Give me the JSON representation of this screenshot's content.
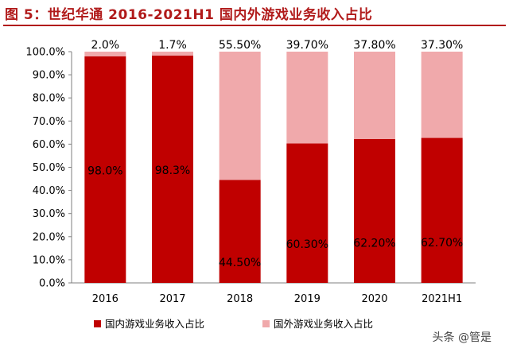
{
  "title": "图 5：世纪华通 2016-2021H1 国内外游戏业务收入占比",
  "watermark": "头条 @管是",
  "chart_data": {
    "type": "bar",
    "stacked": true,
    "categories": [
      "2016",
      "2017",
      "2018",
      "2019",
      "2020",
      "2021H1"
    ],
    "series": [
      {
        "name": "国内游戏业务收入占比",
        "values": [
          98.0,
          98.3,
          44.5,
          60.3,
          62.2,
          62.7
        ],
        "labels": [
          "98.0%",
          "98.3%",
          "44.50%",
          "60.30%",
          "62.20%",
          "62.70%"
        ],
        "color": "#c00000"
      },
      {
        "name": "国外游戏业务收入占比",
        "values": [
          2.0,
          1.7,
          55.5,
          39.7,
          37.8,
          37.3
        ],
        "labels": [
          "2.0%",
          "1.7%",
          "55.50%",
          "39.70%",
          "37.80%",
          "37.30%"
        ],
        "color": "#f0a9ab"
      }
    ],
    "yticks": [
      "0.0%",
      "10.0%",
      "20.0%",
      "30.0%",
      "40.0%",
      "50.0%",
      "60.0%",
      "70.0%",
      "80.0%",
      "90.0%",
      "100.0%"
    ],
    "ylim": [
      0,
      100
    ],
    "grid": false,
    "legend_position": "bottom"
  }
}
